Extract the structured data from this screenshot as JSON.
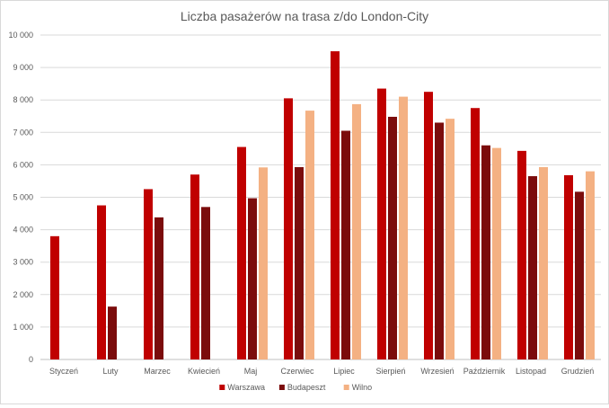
{
  "chart_data": {
    "type": "bar",
    "title": "Liczba pasażerów na trasa z/do London-City",
    "xlabel": "",
    "ylabel": "",
    "ylim": [
      0,
      10000
    ],
    "yticks": [
      0,
      1000,
      2000,
      3000,
      4000,
      5000,
      6000,
      7000,
      8000,
      9000,
      10000
    ],
    "ytick_labels": [
      "0",
      "1 000",
      "2 000",
      "3 000",
      "4 000",
      "5 000",
      "6 000",
      "7 000",
      "8 000",
      "9 000",
      "10 000"
    ],
    "grid": true,
    "legend_position": "bottom",
    "categories": [
      "Styczeń",
      "Luty",
      "Marzec",
      "Kwiecień",
      "Maj",
      "Czerwiec",
      "Lipiec",
      "Sierpień",
      "Wrzesień",
      "Październik",
      "Listopad",
      "Grudzień"
    ],
    "series": [
      {
        "name": "Warszawa",
        "color": "#c00000",
        "values": [
          3800,
          4750,
          5250,
          5700,
          6550,
          8050,
          9500,
          8350,
          8250,
          7750,
          6430,
          5680
        ]
      },
      {
        "name": "Budapeszt",
        "color": "#7b0c0c",
        "values": [
          null,
          1630,
          4380,
          4700,
          4970,
          5930,
          7050,
          7480,
          7300,
          6600,
          5650,
          5170
        ]
      },
      {
        "name": "Wilno",
        "color": "#f4b183",
        "values": [
          null,
          null,
          null,
          null,
          5920,
          7670,
          7870,
          8100,
          7420,
          6520,
          5930,
          5800
        ]
      }
    ]
  }
}
